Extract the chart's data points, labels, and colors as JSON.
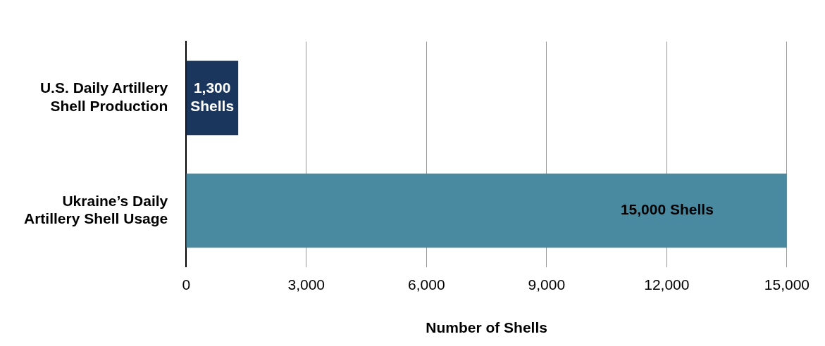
{
  "chart_data": {
    "type": "bar",
    "orientation": "horizontal",
    "xlabel": "Number of Shells",
    "categories": [
      "U.S. Daily Artillery Shell Production",
      "Ukraine’s Daily Artillery Shell Usage"
    ],
    "values": [
      1300,
      15000
    ],
    "colors": [
      "#1b365d",
      "#4a8aa1"
    ],
    "value_labels": [
      "1,300 Shells",
      "15,000 Shells"
    ],
    "xlim": [
      0,
      15000
    ],
    "xticks": [
      0,
      {
        "value": 3000,
        "label": "3,000"
      },
      {
        "value": 6000,
        "label": "6,000"
      },
      {
        "value": 9000,
        "label": "9,000"
      },
      {
        "value": 12000,
        "label": "12,000"
      },
      {
        "value": 15000,
        "label": "15,000"
      }
    ],
    "grid": "x",
    "legend": false
  }
}
